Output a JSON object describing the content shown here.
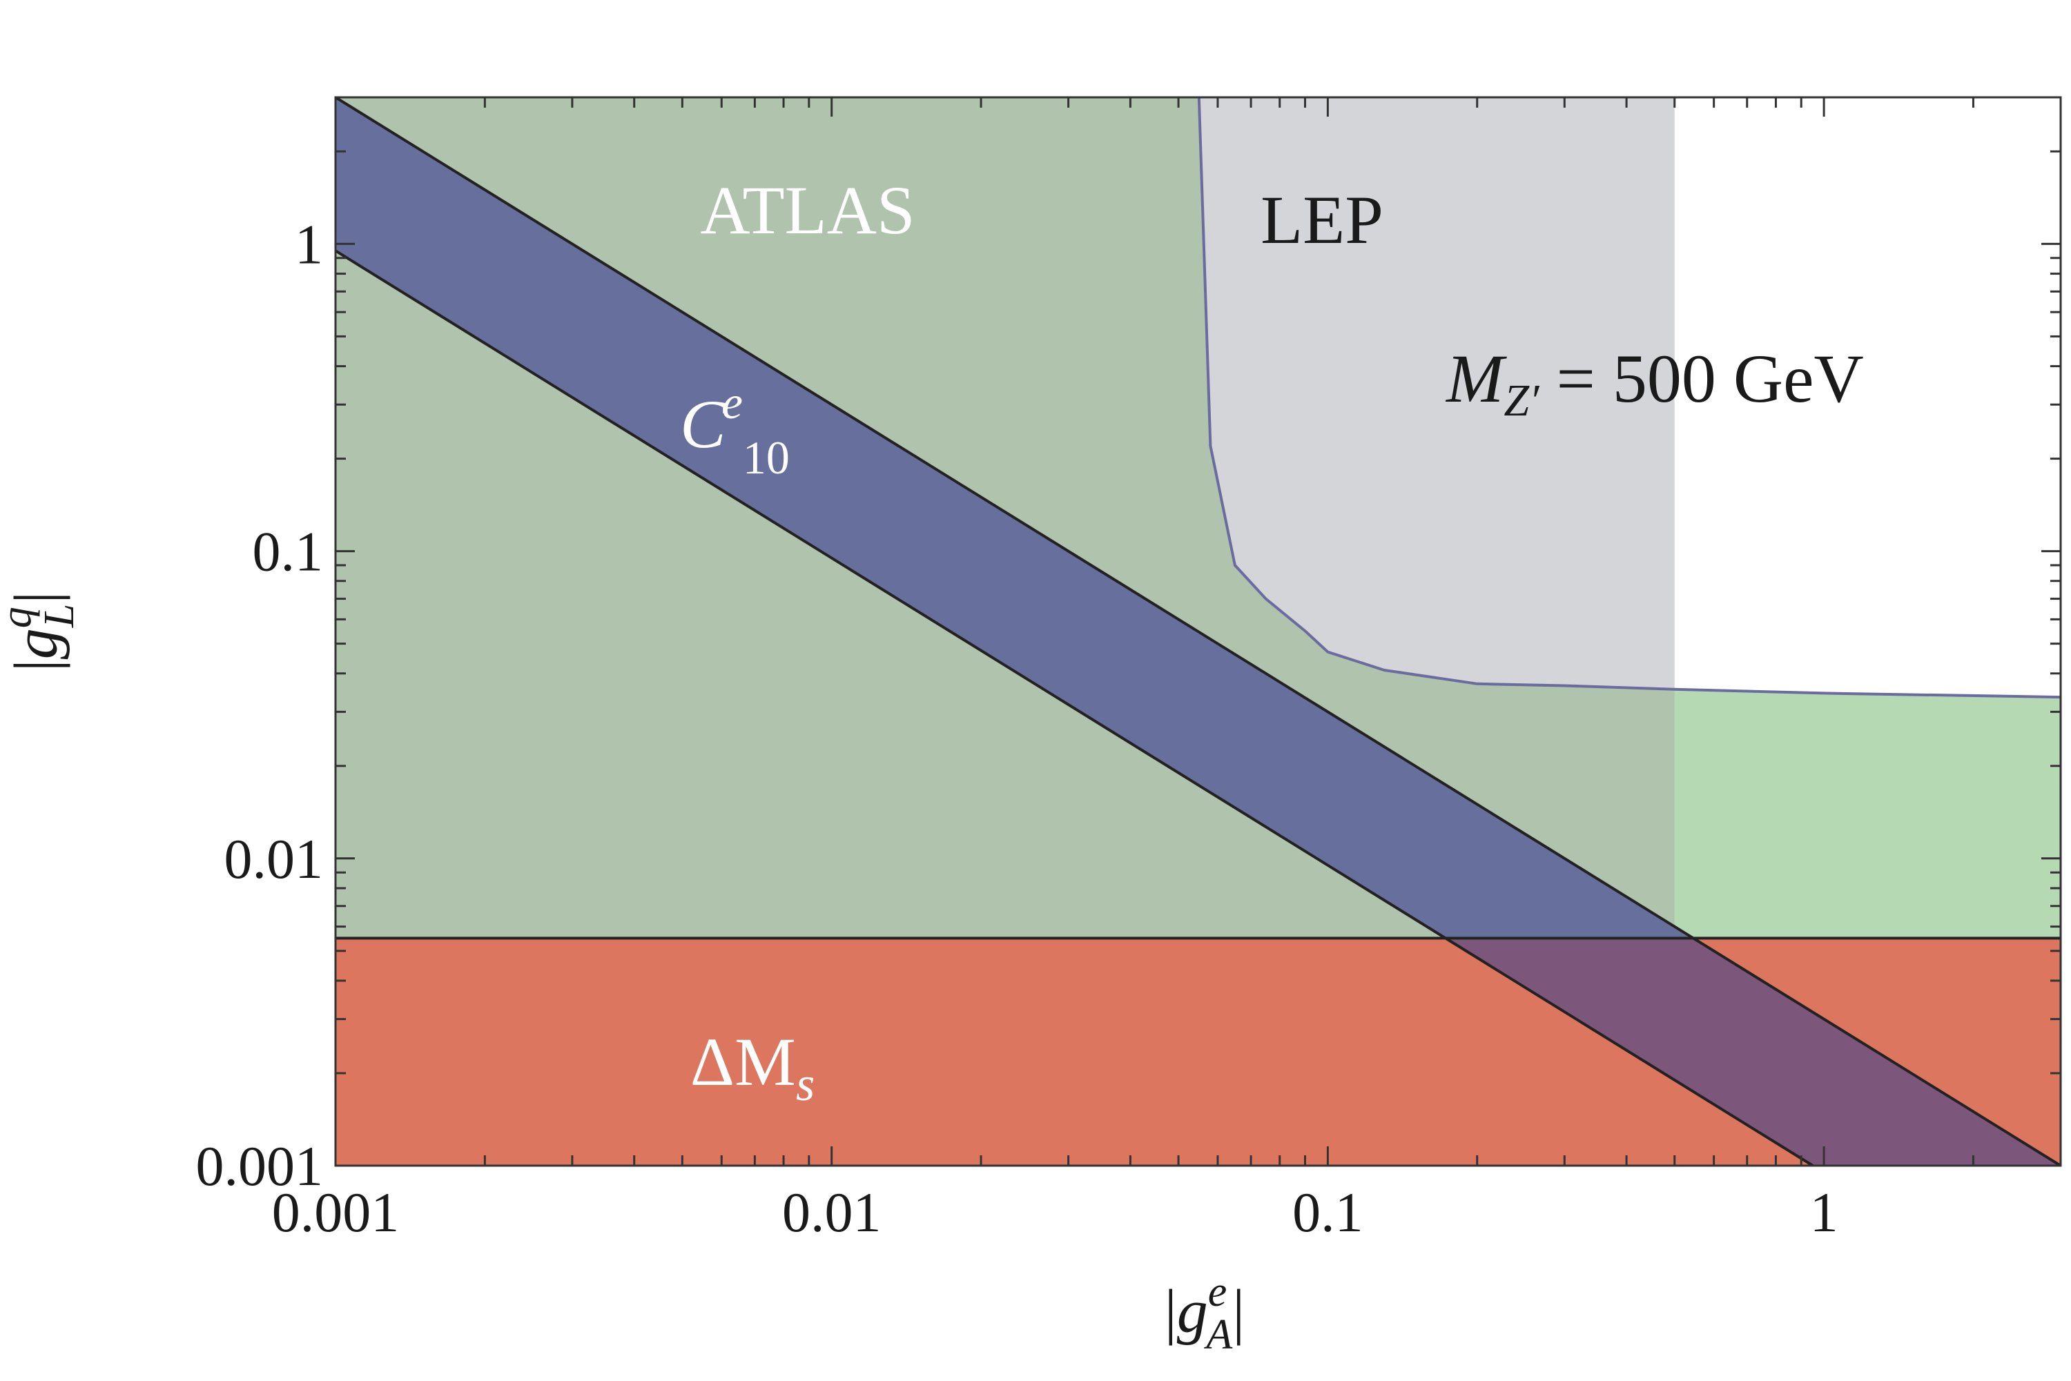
{
  "chart_data": {
    "type": "area",
    "title": "",
    "x_scale": "log",
    "y_scale": "log",
    "xlim": [
      0.001,
      3.0
    ],
    "ylim": [
      0.001,
      3.0
    ],
    "x_ticks": [
      {
        "value": 0.001,
        "label": "0.001"
      },
      {
        "value": 0.01,
        "label": "0.01"
      },
      {
        "value": 0.1,
        "label": "0.1"
      },
      {
        "value": 1,
        "label": "1"
      }
    ],
    "y_ticks": [
      {
        "value": 0.001,
        "label": "0.001"
      },
      {
        "value": 0.01,
        "label": "0.01"
      },
      {
        "value": 0.1,
        "label": "0.1"
      },
      {
        "value": 1,
        "label": "1"
      }
    ],
    "xlabel": {
      "pre": "|",
      "base": "g",
      "sup": "e",
      "sub": "A",
      "post": "|"
    },
    "ylabel": {
      "pre": "|",
      "base": "g",
      "sup": "q",
      "sub": "L",
      "post": "|"
    },
    "annotation": {
      "base": "M",
      "sub": "Z′",
      "rest": " = 500 GeV"
    },
    "colors": {
      "atlas": "#afc3ad",
      "atlas_pure": "#b4d9b3",
      "lep": "#d3d5d8",
      "dms": "#dd765f",
      "c10": "#67709d",
      "c10_overlap": "#7d567b",
      "c10_lep_overlap": "#aab8a6",
      "boundary": "#6a6ca0",
      "edge": "#222222"
    },
    "regions": [
      {
        "id": "atlas",
        "label": "ATLAS",
        "boundary": [
          [
            0.055,
            3.0
          ],
          [
            0.058,
            0.22
          ],
          [
            0.065,
            0.09
          ],
          [
            0.075,
            0.07
          ],
          [
            0.09,
            0.055
          ],
          [
            0.1,
            0.047
          ],
          [
            0.13,
            0.041
          ],
          [
            0.2,
            0.037
          ],
          [
            0.3,
            0.0365
          ],
          [
            0.5,
            0.0355
          ],
          [
            1.0,
            0.0345
          ],
          [
            3.0,
            0.0335
          ]
        ]
      },
      {
        "id": "lep",
        "label": "LEP",
        "x_max": 0.5
      },
      {
        "id": "dms",
        "label": "ΔM",
        "label_sub": "s",
        "y_max": 0.0055
      },
      {
        "id": "c10",
        "label": "C",
        "label_sup": "e",
        "label_sub": "10",
        "upper_line": [
          [
            0.001,
            3.0
          ],
          [
            3.0,
            0.001
          ]
        ],
        "lower_line": [
          [
            0.001,
            0.95
          ],
          [
            0.95,
            0.001
          ]
        ]
      }
    ]
  }
}
